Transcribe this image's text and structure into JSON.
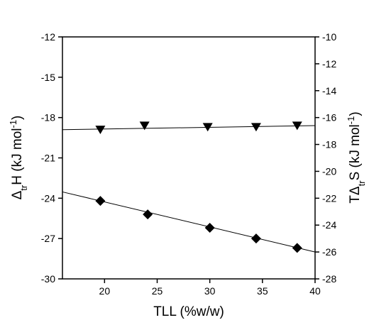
{
  "chart_data": {
    "type": "scatter",
    "x_label": "TLL (%w/w)",
    "y_label": [
      "Δ",
      "tr",
      "H (kJ mol",
      "-1",
      ")"
    ],
    "y2_label": [
      "TΔ",
      "tr",
      "S (kJ mol",
      "-1",
      ")"
    ],
    "xlim": [
      16,
      40
    ],
    "xticks": [
      20,
      25,
      30,
      35,
      40
    ],
    "ylim": [
      -30,
      -12
    ],
    "yticks": [
      -30,
      -27,
      -24,
      -21,
      -18,
      -15,
      -12
    ],
    "y2lim": [
      -28,
      -10
    ],
    "y2ticks": [
      -28,
      -26,
      -24,
      -22,
      -20,
      -18,
      -16,
      -14,
      -12,
      -10
    ],
    "series": [
      {
        "marker": "diamond",
        "color": "#000000",
        "x": [
          19.6,
          24.1,
          30.0,
          34.4,
          38.3
        ],
        "values": [
          -24.2,
          -25.2,
          -26.2,
          -27.0,
          -27.7
        ],
        "fit": {
          "x": [
            16,
            40
          ],
          "values": [
            -23.53,
            -28.0
          ]
        }
      },
      {
        "marker": "triangle-down",
        "color": "#000000",
        "axis": "y2",
        "x": [
          19.6,
          23.8,
          29.8,
          34.4,
          38.3
        ],
        "values": [
          -16.9,
          -16.6,
          -16.7,
          -16.7,
          -16.6
        ],
        "fit": {
          "x": [
            16,
            40
          ],
          "values": [
            -16.9,
            -16.6
          ]
        }
      }
    ]
  }
}
